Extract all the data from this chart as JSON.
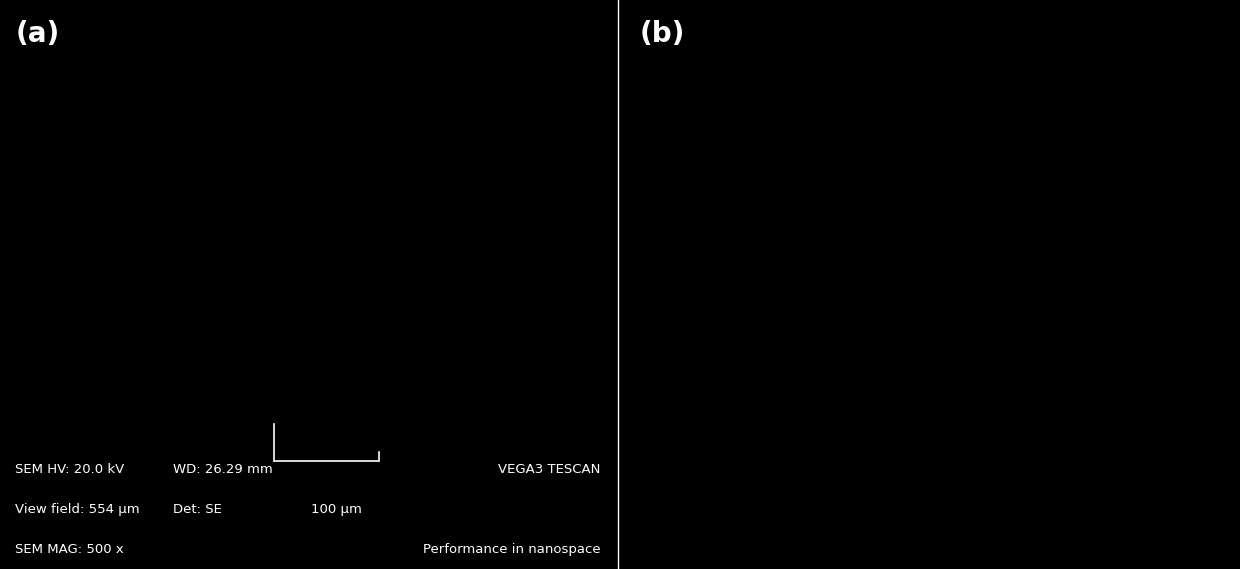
{
  "fig_width": 12.4,
  "fig_height": 5.69,
  "bg_color": "#000000",
  "panel_a_label": "(a)",
  "panel_b_label": "(b)",
  "label_color": "#ffffff",
  "label_fontsize": 20,
  "label_fontweight": "bold",
  "divider_color": "#ffffff",
  "divider_linewidth": 1,
  "sem_text_color": "#ffffff",
  "sem_text_fontsize": 9.5,
  "sem_hv": "SEM HV: 20.0 kV",
  "sem_wd": "WD: 26.29 mm",
  "sem_vf": "View field: 554 μm",
  "sem_det": "Det: SE",
  "sem_mag": "SEM MAG: 500 x",
  "sem_scalebar": "100 μm",
  "sem_brand": "VEGA3 TESCAN",
  "sem_tagline": "Performance in nanospace"
}
